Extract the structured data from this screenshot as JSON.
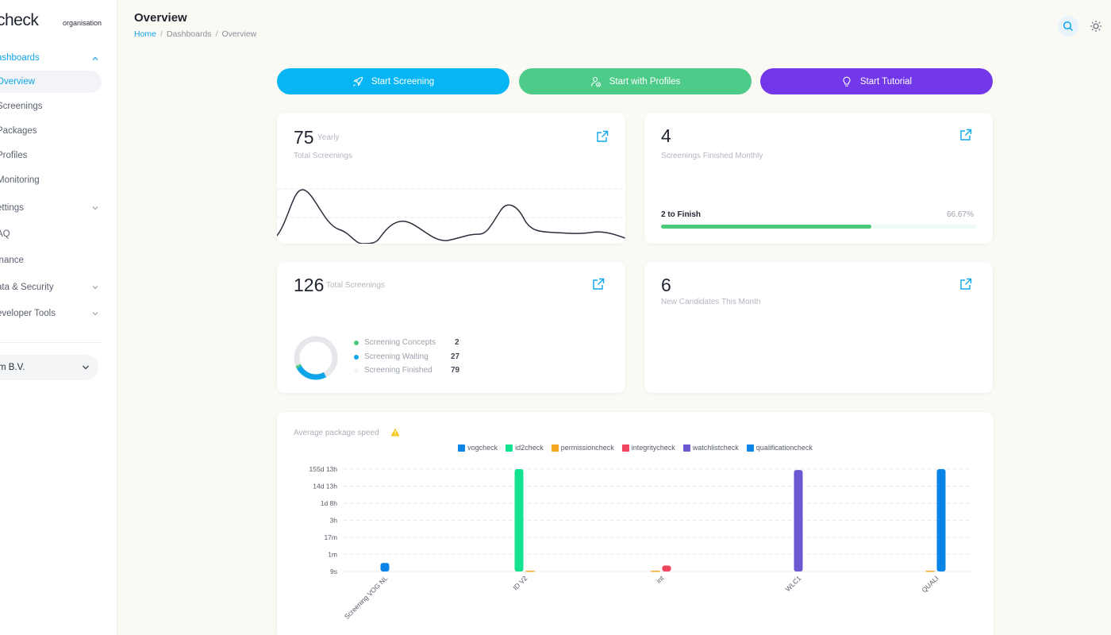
{
  "sidebar": {
    "logo": "check",
    "org_label": "organisation",
    "items": [
      {
        "label": "ashboards",
        "chevron": "up"
      },
      {
        "label": "Overview",
        "selected": true
      },
      {
        "label": "Screenings"
      },
      {
        "label": "Packages"
      },
      {
        "label": "Profiles"
      },
      {
        "label": "Monitoring"
      },
      {
        "label": "ettings",
        "chevron": "down"
      },
      {
        "label": "AQ"
      },
      {
        "label": "inance"
      },
      {
        "label": "ata & Security",
        "chevron": "down"
      },
      {
        "label": "eveloper Tools",
        "chevron": "down"
      }
    ],
    "org_select": "m B.V."
  },
  "header": {
    "title": "Overview",
    "breadcrumb": [
      "Home",
      "Dashboards",
      "Overview"
    ]
  },
  "actions": [
    {
      "label": "Start Screening",
      "icon": "rocket-icon",
      "color": "#06b6f4"
    },
    {
      "label": "Start with Profiles",
      "icon": "user-check-icon",
      "color": "#4ccc88"
    },
    {
      "label": "Start Tutorial",
      "icon": "lightbulb-icon",
      "color": "#7237e8"
    }
  ],
  "cards": {
    "yearly": {
      "value": "75",
      "unit": "Yearly",
      "label": "Total Screenings"
    },
    "monthly": {
      "value": "4",
      "label": "Screenings Finished Monthly",
      "progress_label": "2 to Finish",
      "progress_pct": "66.67%",
      "progress_value": 66.67
    },
    "total": {
      "value": "126",
      "label": "Total Screenings",
      "legend": [
        {
          "name": "Screening Concepts",
          "value": "2",
          "color": "#4cc97a"
        },
        {
          "name": "Screening Waiting",
          "value": "27",
          "color": "#0ea5e9"
        },
        {
          "name": "Screening Finished",
          "value": "79",
          "color": "#e5e7eb"
        }
      ]
    },
    "candidates": {
      "value": "6",
      "label": "New Candidates This Month"
    }
  },
  "speed": {
    "title": "Average package speed"
  },
  "chart_data": {
    "type": "bar",
    "title": "",
    "y_ticks": [
      "155d 13h",
      "14d 13h",
      "1d 8h",
      "3h",
      "17m",
      "1m",
      "9s"
    ],
    "categories": [
      "Screening VOG NL",
      "ID V2",
      "int",
      "WLC1",
      "QUALI"
    ],
    "series": [
      {
        "name": "vogcheck",
        "color": "#0a84e6",
        "values": [
          0.5,
          0,
          0,
          0,
          0
        ]
      },
      {
        "name": "id2check",
        "color": "#13e28f",
        "values": [
          0,
          6,
          0,
          0,
          0
        ]
      },
      {
        "name": "permissioncheck",
        "color": "#f5a623",
        "values": [
          0,
          0.05,
          0.05,
          0,
          0.05
        ]
      },
      {
        "name": "integritycheck",
        "color": "#f0445f",
        "values": [
          0,
          0,
          0.35,
          0,
          0
        ]
      },
      {
        "name": "watchlistcheck",
        "color": "#6e57d2",
        "values": [
          0,
          0,
          0,
          5.95,
          0
        ]
      },
      {
        "name": "qualificationcheck",
        "color": "#0a84e6",
        "values": [
          0,
          0,
          0,
          0,
          6
        ]
      }
    ]
  }
}
